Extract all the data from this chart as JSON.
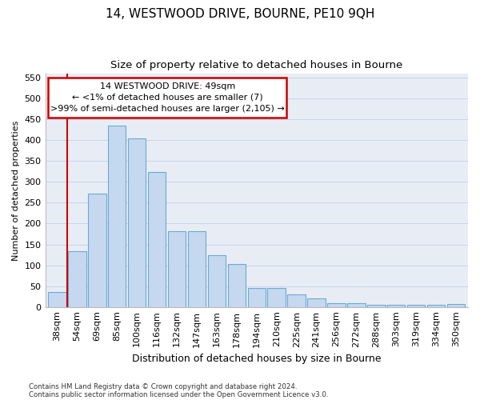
{
  "title": "14, WESTWOOD DRIVE, BOURNE, PE10 9QH",
  "subtitle": "Size of property relative to detached houses in Bourne",
  "xlabel": "Distribution of detached houses by size in Bourne",
  "ylabel": "Number of detached properties",
  "footer_line1": "Contains HM Land Registry data © Crown copyright and database right 2024.",
  "footer_line2": "Contains public sector information licensed under the Open Government Licence v3.0.",
  "categories": [
    "38sqm",
    "54sqm",
    "69sqm",
    "85sqm",
    "100sqm",
    "116sqm",
    "132sqm",
    "147sqm",
    "163sqm",
    "178sqm",
    "194sqm",
    "210sqm",
    "225sqm",
    "241sqm",
    "256sqm",
    "272sqm",
    "288sqm",
    "303sqm",
    "319sqm",
    "334sqm",
    "350sqm"
  ],
  "values": [
    35,
    133,
    272,
    435,
    405,
    323,
    181,
    181,
    124,
    104,
    46,
    46,
    30,
    20,
    9,
    9,
    5,
    5,
    5,
    5,
    7
  ],
  "bar_color": "#c5d8ef",
  "bar_edge_color": "#6aaad4",
  "annotation_title": "14 WESTWOOD DRIVE: 49sqm",
  "annotation_line2": "← <1% of detached houses are smaller (7)",
  "annotation_line3": ">99% of semi-detached houses are larger (2,105) →",
  "annotation_color": "#cc0000",
  "red_line_x": 0.5,
  "ylim": [
    0,
    560
  ],
  "yticks": [
    0,
    50,
    100,
    150,
    200,
    250,
    300,
    350,
    400,
    450,
    500,
    550
  ],
  "grid_color": "#c8d4e8",
  "bg_color": "#e8edf5",
  "title_fontsize": 11,
  "subtitle_fontsize": 9.5,
  "ylabel_fontsize": 8,
  "xlabel_fontsize": 9,
  "tick_fontsize": 8,
  "annot_fontsize": 8
}
